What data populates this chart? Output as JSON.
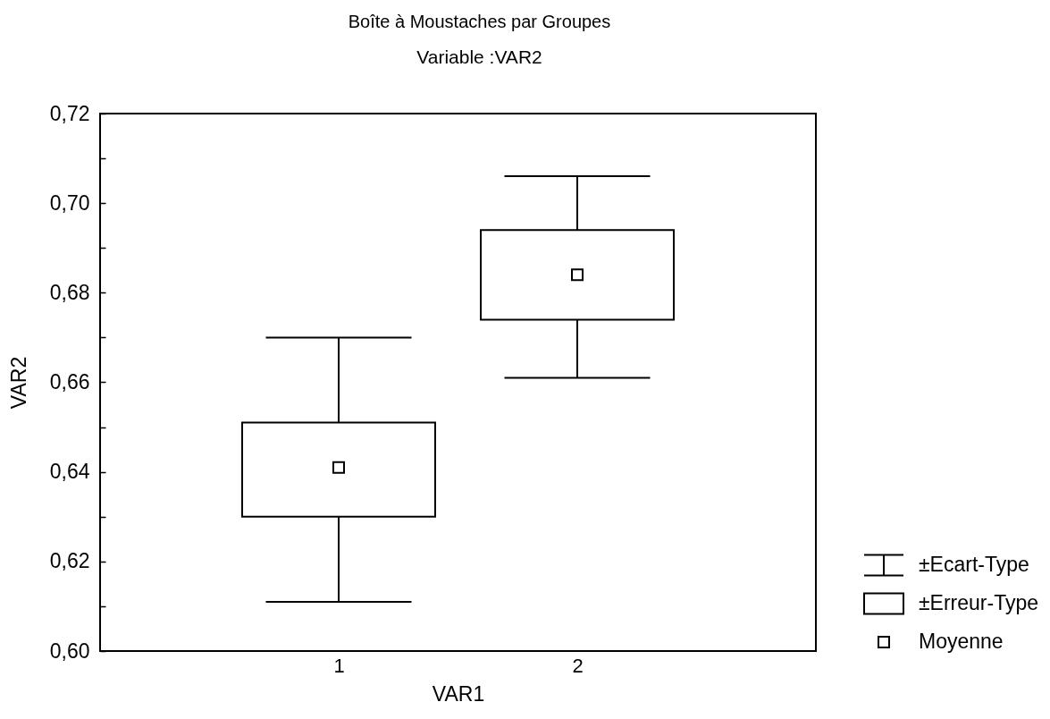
{
  "chart_data": {
    "type": "box",
    "title": "Boîte à Moustaches par Groupes",
    "subtitle": "Variable :VAR2",
    "xlabel": "VAR1",
    "ylabel": "VAR2",
    "categories": [
      "1",
      "2"
    ],
    "boxes": [
      {
        "low": 0.611,
        "q1": 0.63,
        "median": null,
        "q3": 0.651,
        "high": 0.67,
        "mean": 0.641
      },
      {
        "low": 0.661,
        "q1": 0.674,
        "median": null,
        "q3": 0.694,
        "high": 0.706,
        "mean": 0.684
      }
    ],
    "ylim": [
      0.6,
      0.72
    ],
    "yticks": [
      {
        "value": 0.6,
        "label": "0,60"
      },
      {
        "value": 0.61,
        "label": null
      },
      {
        "value": 0.62,
        "label": "0,62"
      },
      {
        "value": 0.63,
        "label": null
      },
      {
        "value": 0.64,
        "label": "0,64"
      },
      {
        "value": 0.65,
        "label": null
      },
      {
        "value": 0.66,
        "label": "0,66"
      },
      {
        "value": 0.67,
        "label": null
      },
      {
        "value": 0.68,
        "label": "0,68"
      },
      {
        "value": 0.69,
        "label": null
      },
      {
        "value": 0.7,
        "label": "0,70"
      },
      {
        "value": 0.71,
        "label": null
      },
      {
        "value": 0.72,
        "label": "0,72"
      }
    ],
    "marker": "square",
    "annotations": [
      "±Ecart-Type",
      "±Erreur-Type",
      "Moyenne"
    ]
  }
}
